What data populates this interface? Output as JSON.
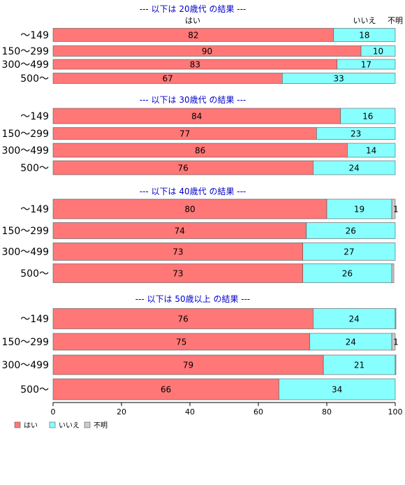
{
  "chart_data": {
    "type": "bar",
    "orientation": "horizontal",
    "stacked": true,
    "xlim": [
      0,
      100
    ],
    "x_ticks": [
      "0",
      "20",
      "40",
      "60",
      "80",
      "100"
    ],
    "column_headers": [
      "はい",
      "いいえ",
      "不明"
    ],
    "legend": {
      "placement": "bottom-left",
      "items": [
        {
          "label": "はい",
          "color": "#ff7777"
        },
        {
          "label": "いいえ",
          "color": "#88ffff"
        },
        {
          "label": "不明",
          "color": "#cccccc"
        }
      ]
    },
    "series_names": [
      "はい",
      "いいえ",
      "不明"
    ],
    "series_colors": [
      "#ff7777",
      "#88ffff",
      "#cccccc"
    ],
    "panels": [
      {
        "title": "--- 以下は 20歳代 の結果 ---",
        "categories": [
          "～149",
          "150～299",
          "300～499",
          "500～"
        ],
        "values": [
          [
            82,
            18,
            0
          ],
          [
            90,
            10,
            0
          ],
          [
            83,
            17,
            0
          ],
          [
            67,
            33,
            0
          ]
        ]
      },
      {
        "title": "--- 以下は 30歳代 の結果 ---",
        "categories": [
          "～149",
          "150～299",
          "300～499",
          "500～"
        ],
        "values": [
          [
            84,
            16,
            0
          ],
          [
            77,
            23,
            0
          ],
          [
            86,
            14,
            0
          ],
          [
            76,
            24,
            0
          ]
        ]
      },
      {
        "title": "--- 以下は 40歳代 の結果 ---",
        "categories": [
          "～149",
          "150～299",
          "300～499",
          "500～"
        ],
        "values": [
          [
            80,
            19,
            1
          ],
          [
            74,
            26,
            0
          ],
          [
            73,
            27,
            0
          ],
          [
            73,
            26,
            0.6
          ]
        ]
      },
      {
        "title": "--- 以下は 50歳以上 の結果 ---",
        "categories": [
          "～149",
          "150～299",
          "300～499",
          "500～"
        ],
        "values": [
          [
            76,
            24,
            0.6
          ],
          [
            75,
            24,
            1
          ],
          [
            79,
            21,
            0.4
          ],
          [
            66,
            34,
            0
          ]
        ]
      }
    ]
  }
}
